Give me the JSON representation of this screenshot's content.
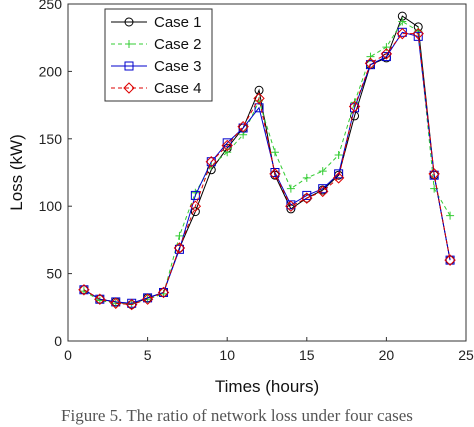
{
  "chart_data": {
    "type": "line",
    "xlabel": "Times (hours)",
    "ylabel": "Loss (kW)",
    "xlim": [
      0,
      25
    ],
    "ylim": [
      0,
      250
    ],
    "xticks": [
      0,
      5,
      10,
      15,
      20,
      25
    ],
    "yticks": [
      0,
      50,
      100,
      150,
      200,
      250
    ],
    "grid": false,
    "legend_position": "top-left",
    "x": [
      1,
      2,
      3,
      4,
      5,
      6,
      7,
      8,
      9,
      10,
      11,
      12,
      13,
      14,
      15,
      16,
      17,
      18,
      19,
      20,
      21,
      22,
      23,
      24
    ],
    "series": [
      {
        "name": "Case 1",
        "color": "#000000",
        "marker": "circle",
        "line": "solid",
        "values": [
          38,
          31,
          29,
          27,
          32,
          36,
          69,
          96,
          127,
          143,
          158,
          186,
          123,
          98,
          106,
          112,
          123,
          167,
          205,
          210,
          241,
          233,
          123,
          60
        ]
      },
      {
        "name": "Case 2",
        "color": "#33cc33",
        "marker": "plus",
        "line": "dashed",
        "values": [
          37,
          30,
          28,
          28,
          31,
          35,
          78,
          110,
          130,
          140,
          153,
          178,
          140,
          113,
          121,
          126,
          138,
          177,
          211,
          218,
          237,
          230,
          113,
          93
        ]
      },
      {
        "name": "Case 3",
        "color": "#0000cc",
        "marker": "square",
        "line": "solid",
        "values": [
          38,
          31,
          29,
          28,
          32,
          36,
          68,
          108,
          133,
          147,
          158,
          173,
          125,
          101,
          108,
          113,
          124,
          173,
          205,
          211,
          229,
          226,
          123,
          60
        ]
      },
      {
        "name": "Case 4",
        "color": "#dd0000",
        "marker": "diamond",
        "line": "dashed",
        "values": [
          38,
          31,
          28,
          27,
          31,
          36,
          69,
          100,
          133,
          145,
          159,
          180,
          124,
          100,
          106,
          111,
          121,
          174,
          206,
          213,
          228,
          228,
          124,
          60
        ]
      }
    ]
  },
  "caption": "Figure 5.  The ratio of network loss under four cases"
}
